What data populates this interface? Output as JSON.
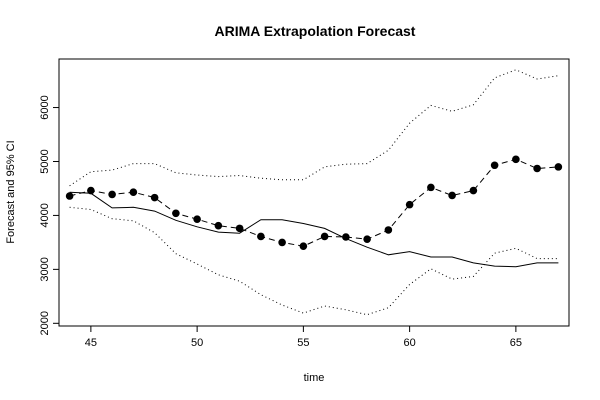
{
  "chart_data": {
    "type": "line",
    "title": "ARIMA Extrapolation Forecast",
    "xlabel": "time",
    "ylabel": "Forecast and 95% CI",
    "xlim": [
      43.5,
      67.5
    ],
    "ylim": [
      1950,
      6900
    ],
    "x_ticks": [
      45,
      50,
      55,
      60,
      65
    ],
    "x_tick_labels": [
      "45",
      "50",
      "55",
      "60",
      "65"
    ],
    "y_ticks": [
      2000,
      3000,
      4000,
      5000,
      6000
    ],
    "y_tick_labels": [
      "2000",
      "3000",
      "4000",
      "5000",
      "6000"
    ],
    "grid": false,
    "legend": "none",
    "x": [
      44,
      45,
      46,
      47,
      48,
      49,
      50,
      51,
      52,
      53,
      54,
      55,
      56,
      57,
      58,
      59,
      60,
      61,
      62,
      63,
      64,
      65,
      66,
      67
    ],
    "series": [
      {
        "style": "solid",
        "color": "#000000",
        "values": [
          4430,
          4410,
          4140,
          4150,
          4080,
          3910,
          3790,
          3690,
          3670,
          3920,
          3920,
          3850,
          3760,
          3570,
          3410,
          3270,
          3330,
          3230,
          3230,
          3120,
          3060,
          3050,
          3120,
          3120
        ]
      },
      {
        "style": "dashed-with-points",
        "color": "#000000",
        "values": [
          4360,
          4460,
          4390,
          4430,
          4330,
          4040,
          3930,
          3810,
          3760,
          3610,
          3500,
          3430,
          3610,
          3600,
          3560,
          3730,
          4200,
          4520,
          4370,
          4460,
          4930,
          5040,
          4870,
          4900
        ]
      },
      {
        "style": "dotted",
        "color": "#000000",
        "values": [
          4550,
          4810,
          4840,
          4960,
          4960,
          4790,
          4750,
          4720,
          4740,
          4690,
          4660,
          4660,
          4900,
          4950,
          4960,
          5210,
          5710,
          6040,
          5930,
          6050,
          6550,
          6700,
          6530,
          6590
        ]
      },
      {
        "style": "dotted",
        "color": "#000000",
        "values": [
          4150,
          4110,
          3940,
          3900,
          3680,
          3290,
          3100,
          2900,
          2780,
          2530,
          2340,
          2190,
          2320,
          2250,
          2160,
          2290,
          2720,
          3010,
          2820,
          2870,
          3300,
          3390,
          3200,
          3200
        ]
      }
    ]
  }
}
